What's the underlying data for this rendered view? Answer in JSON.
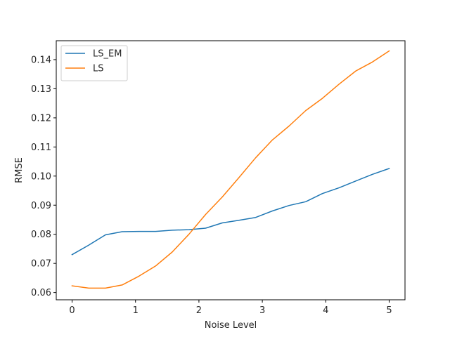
{
  "chart_data": {
    "type": "line",
    "title": "",
    "xlabel": "Noise Level",
    "ylabel": "RMSE",
    "xlim": [
      -0.25,
      5.25
    ],
    "ylim": [
      0.0575,
      0.1465
    ],
    "xticks": [
      0,
      1,
      2,
      3,
      4,
      5
    ],
    "xtick_labels": [
      "0",
      "1",
      "2",
      "3",
      "4",
      "5"
    ],
    "yticks": [
      0.06,
      0.07,
      0.08,
      0.09,
      0.1,
      0.11,
      0.12,
      0.13,
      0.14
    ],
    "ytick_labels": [
      "0.06",
      "0.07",
      "0.08",
      "0.09",
      "0.10",
      "0.11",
      "0.12",
      "0.13",
      "0.14"
    ],
    "grid": false,
    "legend_position": "top-left",
    "x": [
      0,
      0.263,
      0.526,
      0.789,
      1.053,
      1.316,
      1.579,
      1.842,
      2.105,
      2.368,
      2.632,
      2.895,
      3.158,
      3.421,
      3.684,
      3.947,
      4.211,
      4.474,
      4.737,
      5.0
    ],
    "series": [
      {
        "name": "LS_EM",
        "color": "#1f77b4",
        "values": [
          0.073,
          0.0763,
          0.0798,
          0.0809,
          0.081,
          0.081,
          0.0814,
          0.0816,
          0.0821,
          0.0839,
          0.0848,
          0.0858,
          0.088,
          0.0899,
          0.0912,
          0.094,
          0.096,
          0.0983,
          0.1006,
          0.1026
        ]
      },
      {
        "name": "LS",
        "color": "#ff7f0e",
        "values": [
          0.0623,
          0.0615,
          0.0615,
          0.0626,
          0.0656,
          0.0691,
          0.0739,
          0.08,
          0.0868,
          0.0928,
          0.0995,
          0.1063,
          0.1124,
          0.1172,
          0.1225,
          0.1267,
          0.1316,
          0.1361,
          0.1392,
          0.143
        ]
      }
    ]
  }
}
